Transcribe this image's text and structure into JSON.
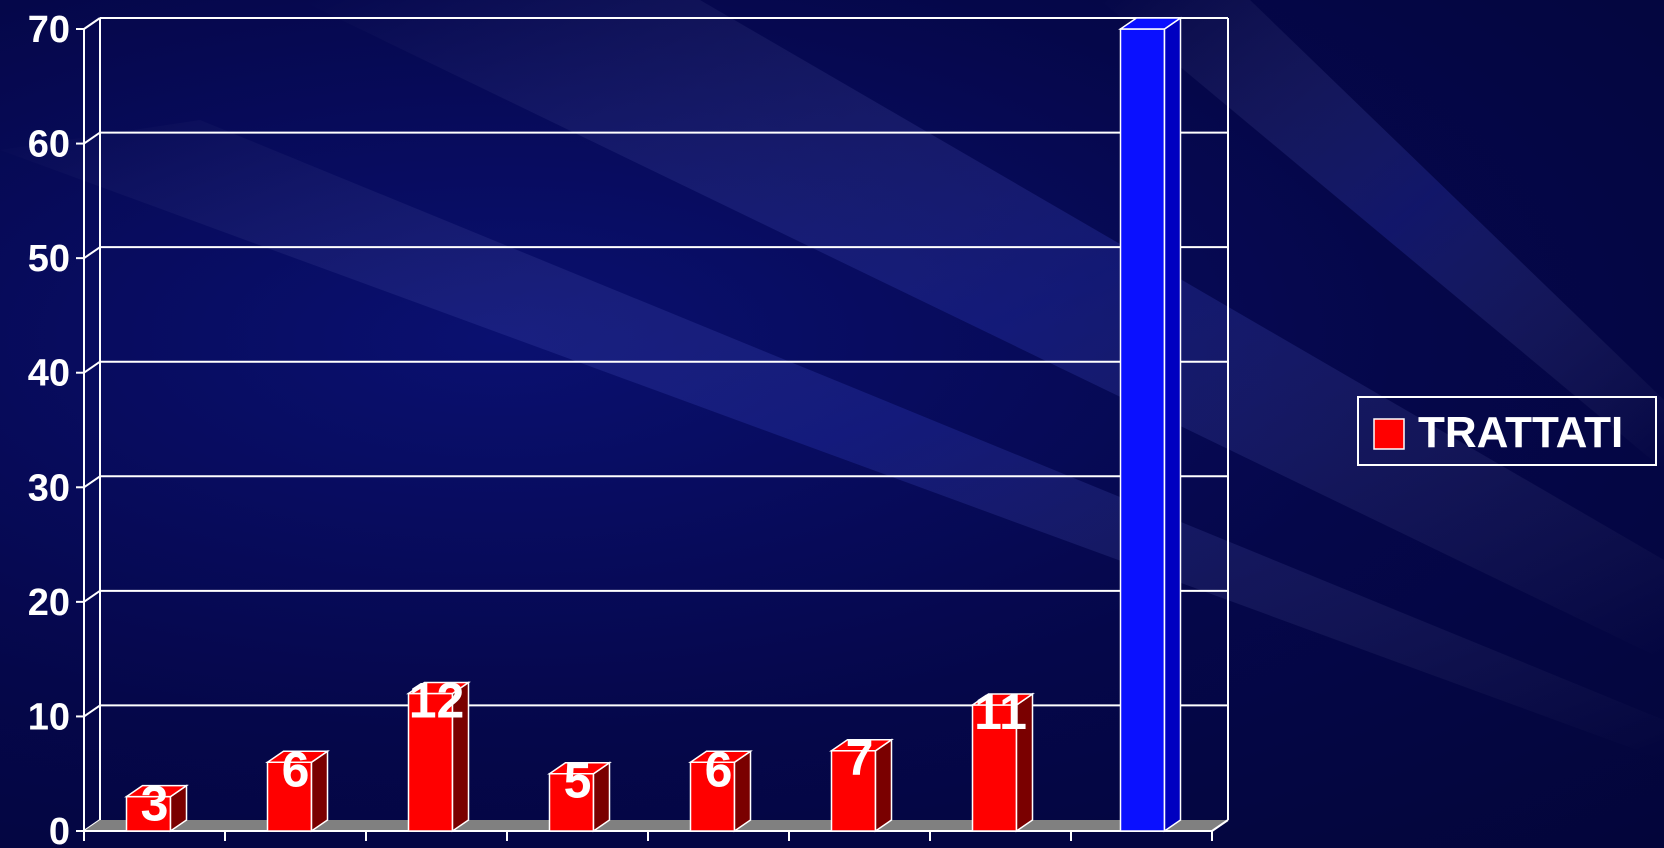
{
  "chart_data": {
    "type": "bar",
    "categories": [
      "",
      "",
      "",
      "",
      "",
      "",
      "",
      ""
    ],
    "series": [
      {
        "name": "TRATTATI",
        "values": [
          3,
          6,
          12,
          5,
          6,
          7,
          11,
          null
        ]
      },
      {
        "values": [
          null,
          null,
          null,
          null,
          null,
          null,
          null,
          70
        ]
      }
    ],
    "data_labels": [
      "3",
      "6",
      "12",
      "5",
      "6",
      "7",
      "11",
      ""
    ],
    "y_ticks": [
      "0",
      "10",
      "20",
      "30",
      "40",
      "50",
      "60",
      "70"
    ],
    "ylim": [
      0,
      70
    ],
    "grid": true,
    "legend": {
      "placement": "right",
      "entries": [
        "TRATTATI"
      ]
    },
    "colors": {
      "series_1": "#ff0000",
      "series_1_side": "#7a0000",
      "series_2": "#0a10ff",
      "series_2_side": "#0000c0",
      "floor": "#808080",
      "grid": "#ffffff"
    }
  }
}
